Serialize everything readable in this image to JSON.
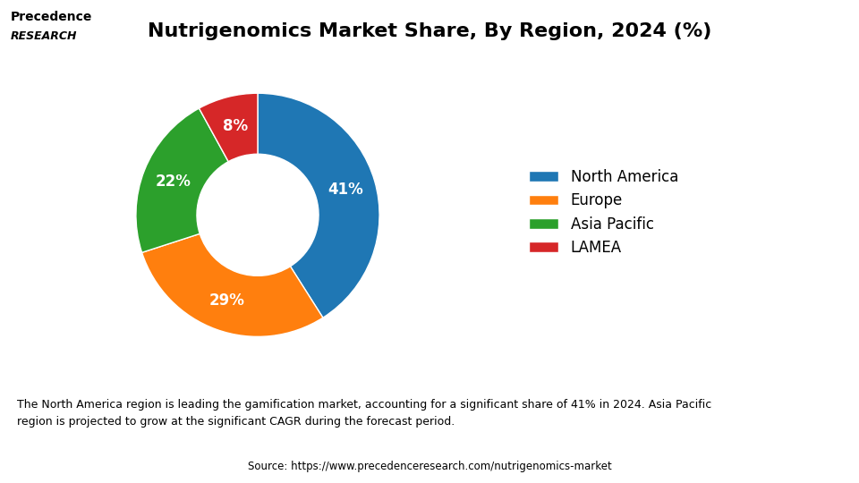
{
  "chart_data": {
    "type": "pie",
    "title": "Nutrigenomics Market Share, By Region, 2024 (%)",
    "categories": [
      "North America",
      "Europe",
      "Asia Pacific",
      "LAMEA"
    ],
    "values": [
      41,
      29,
      22,
      8
    ],
    "value_labels": [
      "41%",
      "29%",
      "22%",
      "8%"
    ],
    "data_labels": true,
    "legend": "center left",
    "annotations": [
      "Precedence",
      "RESEARCH",
      "The North America region is leading the gamification market, accounting for a significant share of 41% in 2024. Asia Pacific\nregion is projected to grow at the significant CAGR during the forecast period.",
      "Source: https://www.precedenceresearch.com/nutrigenomics-market"
    ]
  }
}
